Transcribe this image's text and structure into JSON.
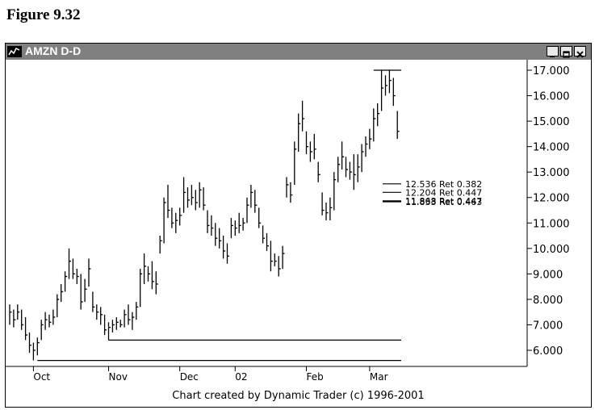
{
  "figure": {
    "title": "Figure 9.32"
  },
  "window": {
    "title": "AMZN D-D",
    "controls": {
      "minimize_icon": "minimize-icon",
      "maximize_icon": "maximize-icon",
      "close_icon": "close-icon"
    }
  },
  "credit": "Chart created by Dynamic Trader (c) 1996-2001",
  "chart_data": {
    "type": "ohlc",
    "title": "AMZN D-D",
    "ylim": [
      5.4,
      17.3
    ],
    "y_ticks": [
      "17.000",
      "16.000",
      "15.000",
      "14.000",
      "13.000",
      "12.000",
      "11.000",
      "10.000",
      "9.000",
      "8.000",
      "7.000",
      "6.000"
    ],
    "y_tick_values": [
      17,
      16,
      15,
      14,
      13,
      12,
      11,
      10,
      9,
      8,
      7,
      6
    ],
    "x_labels": [
      "Oct",
      "Nov",
      "Dec",
      "02",
      "Feb",
      "Mar"
    ],
    "x_label_bar_index": [
      6,
      25,
      43,
      57,
      75,
      91
    ],
    "bars": [
      {
        "h": 7.8,
        "l": 7.0,
        "c": 7.5
      },
      {
        "h": 7.6,
        "l": 6.9,
        "c": 7.2
      },
      {
        "h": 7.8,
        "l": 7.2,
        "c": 7.5
      },
      {
        "h": 7.6,
        "l": 6.8,
        "c": 7.0
      },
      {
        "h": 7.3,
        "l": 6.4,
        "c": 6.6
      },
      {
        "h": 6.7,
        "l": 5.9,
        "c": 6.2
      },
      {
        "h": 6.3,
        "l": 5.6,
        "c": 6.0
      },
      {
        "h": 6.5,
        "l": 5.8,
        "c": 6.3
      },
      {
        "h": 7.2,
        "l": 6.4,
        "c": 7.0
      },
      {
        "h": 7.5,
        "l": 6.8,
        "c": 7.2
      },
      {
        "h": 7.4,
        "l": 6.9,
        "c": 7.1
      },
      {
        "h": 7.6,
        "l": 7.0,
        "c": 7.3
      },
      {
        "h": 8.2,
        "l": 7.3,
        "c": 8.0
      },
      {
        "h": 8.6,
        "l": 7.9,
        "c": 8.3
      },
      {
        "h": 9.1,
        "l": 8.3,
        "c": 8.9
      },
      {
        "h": 10.0,
        "l": 8.8,
        "c": 9.5
      },
      {
        "h": 9.6,
        "l": 8.8,
        "c": 9.0
      },
      {
        "h": 9.2,
        "l": 8.6,
        "c": 8.9
      },
      {
        "h": 9.0,
        "l": 7.6,
        "c": 7.9
      },
      {
        "h": 8.8,
        "l": 7.9,
        "c": 8.4
      },
      {
        "h": 9.6,
        "l": 8.5,
        "c": 9.2
      },
      {
        "h": 8.3,
        "l": 7.5,
        "c": 7.7
      },
      {
        "h": 7.8,
        "l": 7.2,
        "c": 7.5
      },
      {
        "h": 7.7,
        "l": 7.0,
        "c": 7.4
      },
      {
        "h": 7.4,
        "l": 6.6,
        "c": 6.8
      },
      {
        "h": 7.1,
        "l": 6.4,
        "c": 6.9
      },
      {
        "h": 7.2,
        "l": 6.7,
        "c": 7.0
      },
      {
        "h": 7.3,
        "l": 6.8,
        "c": 7.1
      },
      {
        "h": 7.2,
        "l": 6.9,
        "c": 7.0
      },
      {
        "h": 7.6,
        "l": 6.9,
        "c": 7.4
      },
      {
        "h": 7.8,
        "l": 7.0,
        "c": 7.2
      },
      {
        "h": 7.5,
        "l": 6.8,
        "c": 7.3
      },
      {
        "h": 7.9,
        "l": 7.2,
        "c": 7.7
      },
      {
        "h": 9.2,
        "l": 7.7,
        "c": 9.0
      },
      {
        "h": 9.8,
        "l": 8.6,
        "c": 9.3
      },
      {
        "h": 9.3,
        "l": 8.7,
        "c": 9.0
      },
      {
        "h": 9.5,
        "l": 8.4,
        "c": 8.7
      },
      {
        "h": 9.1,
        "l": 8.2,
        "c": 8.6
      },
      {
        "h": 10.5,
        "l": 9.8,
        "c": 10.3
      },
      {
        "h": 12.0,
        "l": 10.2,
        "c": 11.8
      },
      {
        "h": 12.5,
        "l": 11.2,
        "c": 11.5
      },
      {
        "h": 11.6,
        "l": 10.8,
        "c": 11.0
      },
      {
        "h": 11.4,
        "l": 10.6,
        "c": 11.1
      },
      {
        "h": 11.6,
        "l": 10.9,
        "c": 11.3
      },
      {
        "h": 12.8,
        "l": 11.4,
        "c": 12.2
      },
      {
        "h": 12.4,
        "l": 11.6,
        "c": 11.9
      },
      {
        "h": 12.5,
        "l": 11.7,
        "c": 12.0
      },
      {
        "h": 12.3,
        "l": 11.5,
        "c": 11.8
      },
      {
        "h": 12.6,
        "l": 11.6,
        "c": 12.3
      },
      {
        "h": 12.4,
        "l": 11.5,
        "c": 11.7
      },
      {
        "h": 11.5,
        "l": 10.6,
        "c": 10.9
      },
      {
        "h": 11.3,
        "l": 10.5,
        "c": 10.8
      },
      {
        "h": 11.0,
        "l": 10.1,
        "c": 10.4
      },
      {
        "h": 10.8,
        "l": 10.0,
        "c": 10.3
      },
      {
        "h": 10.5,
        "l": 9.6,
        "c": 9.9
      },
      {
        "h": 10.2,
        "l": 9.4,
        "c": 9.7
      },
      {
        "h": 11.2,
        "l": 10.4,
        "c": 10.9
      },
      {
        "h": 11.1,
        "l": 10.5,
        "c": 10.8
      },
      {
        "h": 11.4,
        "l": 10.6,
        "c": 10.9
      },
      {
        "h": 11.2,
        "l": 10.7,
        "c": 11.0
      },
      {
        "h": 12.0,
        "l": 11.0,
        "c": 11.7
      },
      {
        "h": 12.5,
        "l": 11.6,
        "c": 12.2
      },
      {
        "h": 12.3,
        "l": 11.4,
        "c": 11.7
      },
      {
        "h": 11.6,
        "l": 10.8,
        "c": 11.0
      },
      {
        "h": 10.9,
        "l": 10.2,
        "c": 10.4
      },
      {
        "h": 10.6,
        "l": 9.9,
        "c": 10.1
      },
      {
        "h": 10.3,
        "l": 9.1,
        "c": 9.5
      },
      {
        "h": 9.8,
        "l": 9.3,
        "c": 9.5
      },
      {
        "h": 9.7,
        "l": 8.9,
        "c": 9.2
      },
      {
        "h": 10.1,
        "l": 9.2,
        "c": 9.8
      },
      {
        "h": 12.8,
        "l": 12.0,
        "c": 12.5
      },
      {
        "h": 12.6,
        "l": 11.8,
        "c": 12.1
      },
      {
        "h": 14.2,
        "l": 12.5,
        "c": 13.9
      },
      {
        "h": 15.3,
        "l": 13.8,
        "c": 14.9
      },
      {
        "h": 15.8,
        "l": 14.6,
        "c": 15.1
      },
      {
        "h": 14.6,
        "l": 13.7,
        "c": 14.0
      },
      {
        "h": 14.2,
        "l": 13.4,
        "c": 13.8
      },
      {
        "h": 14.5,
        "l": 13.5,
        "c": 13.9
      },
      {
        "h": 13.4,
        "l": 12.6,
        "c": 12.9
      },
      {
        "h": 12.2,
        "l": 11.3,
        "c": 11.5
      },
      {
        "h": 11.8,
        "l": 11.1,
        "c": 11.4
      },
      {
        "h": 12.0,
        "l": 11.1,
        "c": 11.6
      },
      {
        "h": 13.0,
        "l": 11.5,
        "c": 12.7
      },
      {
        "h": 13.6,
        "l": 12.6,
        "c": 13.3
      },
      {
        "h": 14.2,
        "l": 13.1,
        "c": 13.6
      },
      {
        "h": 13.6,
        "l": 12.8,
        "c": 13.1
      },
      {
        "h": 13.4,
        "l": 12.7,
        "c": 13.0
      },
      {
        "h": 13.7,
        "l": 12.3,
        "c": 12.9
      },
      {
        "h": 13.7,
        "l": 12.6,
        "c": 13.2
      },
      {
        "h": 14.1,
        "l": 13.0,
        "c": 13.8
      },
      {
        "h": 14.4,
        "l": 13.6,
        "c": 14.1
      },
      {
        "h": 14.7,
        "l": 13.9,
        "c": 14.3
      },
      {
        "h": 15.5,
        "l": 14.2,
        "c": 15.1
      },
      {
        "h": 15.7,
        "l": 14.8,
        "c": 15.3
      },
      {
        "h": 17.0,
        "l": 15.4,
        "c": 16.3
      },
      {
        "h": 16.8,
        "l": 16.0,
        "c": 16.4
      },
      {
        "h": 17.0,
        "l": 16.1,
        "c": 16.6
      },
      {
        "h": 16.7,
        "l": 15.6,
        "c": 16.0
      },
      {
        "h": 15.4,
        "l": 14.3,
        "c": 14.6
      }
    ],
    "horizontal_lines": [
      {
        "name": "support-line-nov",
        "y": 6.4,
        "from_bar": 25
      },
      {
        "name": "support-line-oct",
        "y": 5.6,
        "from_bar": 7
      },
      {
        "name": "resistance-line-mar",
        "y": 17.0,
        "from_bar": 92
      }
    ],
    "retracements": [
      {
        "price": "12.536",
        "label": "Ret 0.382",
        "y": 12.536
      },
      {
        "price": "12.204",
        "label": "Ret 0.447",
        "y": 12.204
      },
      {
        "price": "11.868",
        "label": "Ret 0.447",
        "y": 11.868
      },
      {
        "price": "11.833",
        "label": "Ret 0.463",
        "y": 11.833
      }
    ],
    "grid": false,
    "legend": "none"
  }
}
